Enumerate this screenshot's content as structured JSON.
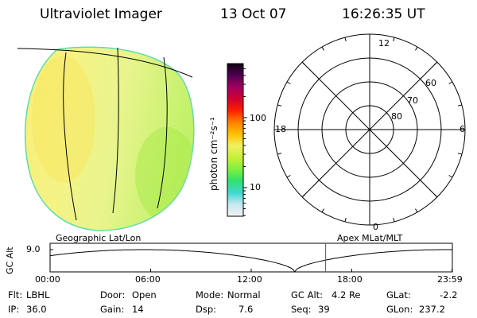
{
  "header": {
    "instrument": "Ultraviolet Imager",
    "date": "13 Oct 07",
    "time": "16:26:35 UT"
  },
  "colorbar": {
    "unit_label": "photon cm⁻²s⁻¹",
    "ticks": [
      {
        "label": "100",
        "value": 100
      },
      {
        "label": "10",
        "value": 10
      }
    ],
    "colors": [
      "#f2f2f2",
      "#c8e8f0",
      "#40d8d0",
      "#30e070",
      "#80f040",
      "#c8f038",
      "#f0f060",
      "#ffc000",
      "#ff8000",
      "#ff2000",
      "#d00030",
      "#a00060",
      "#500050",
      "#100010"
    ]
  },
  "polar_plot": {
    "mlt_labels": [
      {
        "label": "12",
        "angle_deg": 0
      },
      {
        "label": "6",
        "angle_deg": 90
      },
      {
        "label": "0",
        "angle_deg": 180
      },
      {
        "label": "18",
        "angle_deg": 270
      }
    ],
    "lat_labels": [
      {
        "label": "80",
        "lat": 80
      },
      {
        "label": "70",
        "lat": 70
      },
      {
        "label": "60",
        "lat": 60
      }
    ],
    "lat_rings": [
      80,
      70,
      60,
      50
    ]
  },
  "altitude_plot": {
    "left_title": "Geographic Lat/Lon",
    "right_title": "Apex MLat/MLT",
    "ylabel": "GC Alt",
    "ytick": "9.0",
    "ytick_value": 9.0,
    "min_alt": 1.0,
    "x_ticks": [
      {
        "label": "00:00",
        "hours": 0
      },
      {
        "label": "06:00",
        "hours": 6
      },
      {
        "label": "12:00",
        "hours": 12
      },
      {
        "label": "18:00",
        "hours": 18
      },
      {
        "label": "23:59",
        "hours": 23.983
      }
    ],
    "perigee_hours": 14.6,
    "current_hours": 16.44,
    "marker_color": "#d02020"
  },
  "info": {
    "filter_label": "Flt:",
    "filter_value": "LBHL",
    "door_label": "Door:",
    "door_value": "Open",
    "mode_label": "Mode:",
    "mode_value": "Normal",
    "gcalt_label": "GC Alt:",
    "gcalt_value": "4.2 Re",
    "glat_label": "GLat:",
    "glat_value": "-2.2",
    "ip_label": "IP:",
    "ip_value": "36.0",
    "gain_label": "Gain:",
    "gain_value": "14",
    "dsp_label": "Dsp:",
    "dsp_value": "7.6",
    "seq_label": "Seq:",
    "seq_value": "39",
    "glon_label": "GLon:",
    "glon_value": "237.2"
  }
}
